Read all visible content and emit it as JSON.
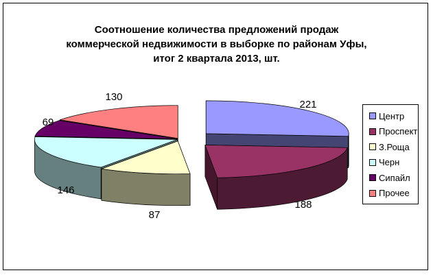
{
  "chart_data": {
    "type": "pie",
    "title": "Соотношение количества  предложений продаж\nкоммерческой недвижимости в выборке  по районам Уфы,\nитог 2 квартала 2013, шт.",
    "labels": [
      "Центр",
      "Проспект",
      "З.Роща",
      "Черн",
      "Сипайл",
      "Прочее"
    ],
    "values": [
      221,
      188,
      87,
      146,
      69,
      130
    ],
    "colors": [
      "#9999ff",
      "#993366",
      "#ffffcc",
      "#ccffff",
      "#660066",
      "#ff8080"
    ],
    "legend_position": "right",
    "style": "3d-exploded"
  }
}
